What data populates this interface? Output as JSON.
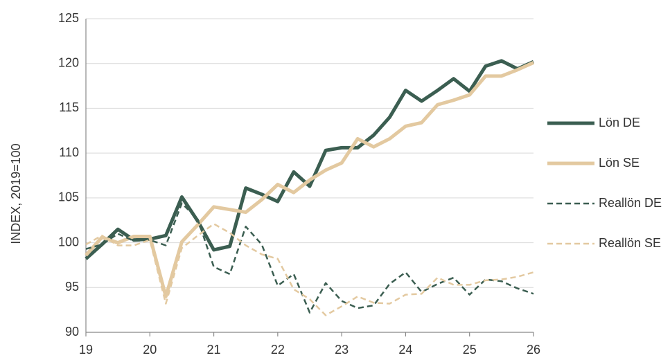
{
  "chart_data": {
    "type": "line",
    "ylabel": "INDEX, 2019=100",
    "x": [
      19,
      19.25,
      19.5,
      19.75,
      20,
      20.25,
      20.5,
      20.75,
      21,
      21.25,
      21.5,
      21.75,
      22,
      22.25,
      22.5,
      22.75,
      23,
      23.25,
      23.5,
      23.75,
      24,
      24.25,
      24.5,
      24.75,
      25,
      25.25,
      25.5,
      25.75,
      26
    ],
    "series": [
      {
        "name": "Lön DE",
        "color": "#3b5e51",
        "style": "solid",
        "values": [
          98.2,
          99.8,
          101.5,
          100.3,
          100.4,
          100.8,
          105.1,
          102.4,
          99.2,
          99.6,
          106.1,
          105.4,
          104.6,
          107.9,
          106.3,
          110.3,
          110.6,
          110.6,
          112.0,
          114.0,
          117.0,
          115.8,
          117.0,
          118.3,
          116.9,
          119.7,
          120.3,
          119.4,
          120.2
        ]
      },
      {
        "name": "Lön SE",
        "color": "#e3c9a0",
        "style": "solid",
        "values": [
          98.6,
          100.6,
          100.0,
          100.7,
          100.7,
          94.0,
          100.1,
          102.0,
          104.0,
          103.7,
          103.4,
          104.8,
          106.5,
          105.6,
          107.0,
          108.1,
          108.9,
          111.6,
          110.7,
          111.6,
          113.0,
          113.4,
          115.4,
          115.9,
          116.5,
          118.6,
          118.6,
          119.3,
          120.1
        ]
      },
      {
        "name": "Reallön DE",
        "color": "#3b5e51",
        "style": "dashed",
        "values": [
          99.3,
          99.8,
          101.0,
          100.2,
          100.3,
          99.7,
          104.4,
          102.6,
          97.3,
          96.5,
          101.8,
          99.8,
          95.2,
          96.5,
          92.2,
          95.5,
          93.5,
          92.7,
          93.0,
          95.4,
          96.7,
          94.5,
          95.4,
          96.1,
          94.2,
          95.9,
          95.7,
          94.9,
          94.3
        ]
      },
      {
        "name": "Reallön SE",
        "color": "#e3c9a0",
        "style": "dashed",
        "values": [
          99.8,
          100.8,
          99.7,
          99.7,
          100.3,
          93.2,
          99.4,
          100.8,
          102.1,
          101.1,
          99.7,
          98.7,
          98.2,
          94.8,
          93.7,
          91.9,
          92.9,
          94.0,
          93.3,
          93.2,
          94.2,
          94.3,
          96.1,
          95.3,
          95.3,
          95.8,
          95.9,
          96.2,
          96.7
        ]
      }
    ],
    "xlim": [
      19,
      26
    ],
    "xticks": [
      19,
      20,
      21,
      22,
      23,
      24,
      25,
      26
    ],
    "ylim": [
      90,
      125
    ],
    "yticks": [
      90,
      95,
      100,
      105,
      110,
      115,
      120,
      125
    ],
    "grid": true,
    "legend": "right"
  }
}
